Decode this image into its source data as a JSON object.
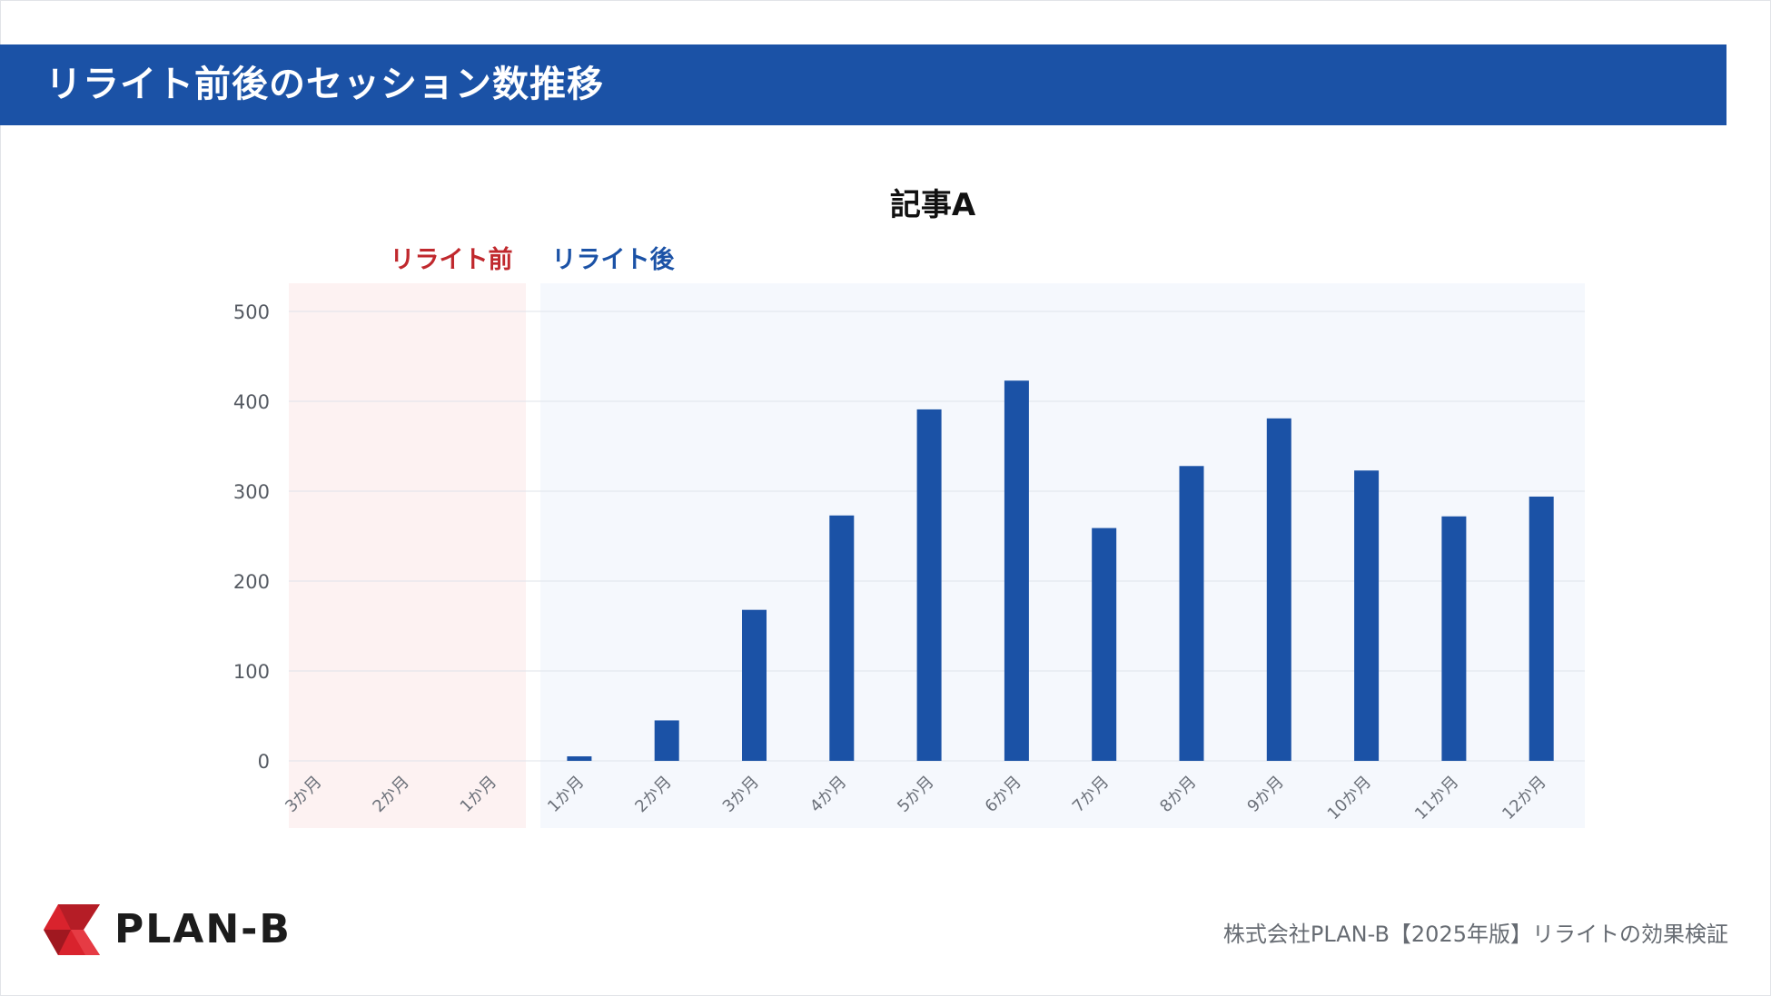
{
  "header": {
    "title": "リライト前後のセッション数推移"
  },
  "chart_data": {
    "type": "bar",
    "title": "記事A",
    "regions": {
      "before_label": "リライト前",
      "after_label": "リライト後"
    },
    "categories": [
      "3か月",
      "2か月",
      "1か月",
      "1か月",
      "2か月",
      "3か月",
      "4か月",
      "5か月",
      "6か月",
      "7か月",
      "8か月",
      "9か月",
      "10か月",
      "11か月",
      "12か月"
    ],
    "values": [
      0,
      0,
      0,
      5,
      45,
      168,
      273,
      391,
      423,
      259,
      328,
      381,
      323,
      272,
      294
    ],
    "before_count": 3,
    "ylim": [
      0,
      500
    ],
    "yticks": [
      0,
      100,
      200,
      300,
      400,
      500
    ],
    "grid": true,
    "colors": {
      "bar": "#1b52a6",
      "before_bg": "#fdf2f2",
      "after_bg": "#f5f8fd",
      "before_label": "#c0282d",
      "after_label": "#1b52a6"
    }
  },
  "footer": {
    "logo_text": "PLAN-B",
    "note": "株式会社PLAN-B【2025年版】リライトの効果検証"
  },
  "colors": {
    "header_bg": "#1b52a6"
  }
}
